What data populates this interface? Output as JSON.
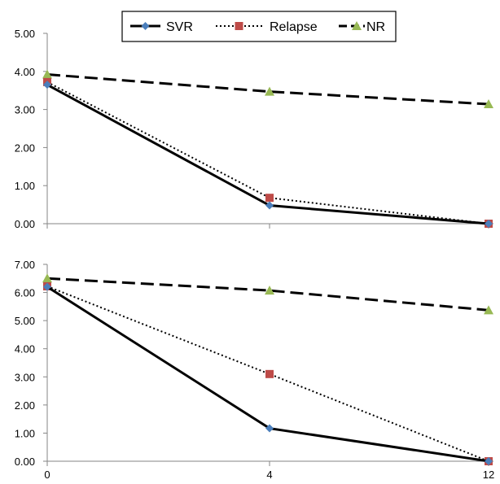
{
  "legend": {
    "items": [
      {
        "label": "SVR",
        "color": "#4a7ebb",
        "marker": "diamond",
        "line": "solid"
      },
      {
        "label": "Relapse",
        "color": "#be4b48",
        "marker": "square",
        "line": "dotted"
      },
      {
        "label": "NR",
        "color": "#98b954",
        "marker": "triangle",
        "line": "dashed"
      }
    ]
  },
  "chart_data": [
    {
      "type": "line",
      "x": [
        0,
        4,
        12
      ],
      "x_tick_labels": [
        "0",
        "4",
        "12"
      ],
      "ylim": [
        0,
        5
      ],
      "y_ticks": [
        "0.00",
        "1.00",
        "2.00",
        "3.00",
        "4.00",
        "5.00"
      ],
      "grid": false,
      "legend_position": "top-center",
      "series": [
        {
          "name": "SVR",
          "values": [
            3.65,
            0.48,
            0.0
          ]
        },
        {
          "name": "Relapse",
          "values": [
            3.72,
            0.68,
            0.0
          ]
        },
        {
          "name": "NR",
          "values": [
            3.92,
            3.47,
            3.14
          ]
        }
      ]
    },
    {
      "type": "line",
      "x": [
        0,
        4,
        12
      ],
      "x_tick_labels": [
        "0",
        "4",
        "12"
      ],
      "ylim": [
        0,
        7
      ],
      "y_ticks": [
        "0.00",
        "1.00",
        "2.00",
        "3.00",
        "4.00",
        "5.00",
        "6.00",
        "7.00"
      ],
      "grid": false,
      "series": [
        {
          "name": "SVR",
          "values": [
            6.2,
            1.17,
            0.0
          ]
        },
        {
          "name": "Relapse",
          "values": [
            6.22,
            3.1,
            0.0
          ]
        },
        {
          "name": "NR",
          "values": [
            6.5,
            6.07,
            5.37
          ]
        }
      ]
    }
  ]
}
